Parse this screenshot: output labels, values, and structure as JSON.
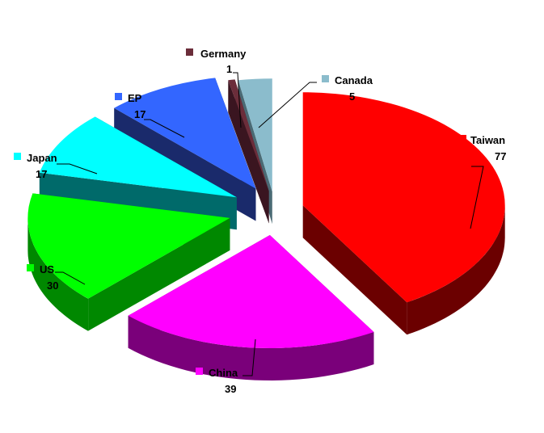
{
  "chart_data": {
    "type": "pie",
    "title": "",
    "style": "3d-exploded",
    "slices": [
      {
        "label": "Taiwan",
        "value": 77,
        "color": "#ff0000",
        "side": "#6b0000"
      },
      {
        "label": "China",
        "value": 39,
        "color": "#ff00ff",
        "side": "#7a007a"
      },
      {
        "label": "US",
        "value": 30,
        "color": "#00ff00",
        "side": "#008800"
      },
      {
        "label": "Japan",
        "value": 17,
        "color": "#00ffff",
        "side": "#006a6a"
      },
      {
        "label": "EP",
        "value": 17,
        "color": "#3366ff",
        "side": "#1a2a6b"
      },
      {
        "label": "Germany",
        "value": 1,
        "color": "#6b2d3a",
        "side": "#3a1520"
      },
      {
        "label": "Canada",
        "value": 5,
        "color": "#8bbccc",
        "side": "#4a6a74"
      }
    ]
  }
}
